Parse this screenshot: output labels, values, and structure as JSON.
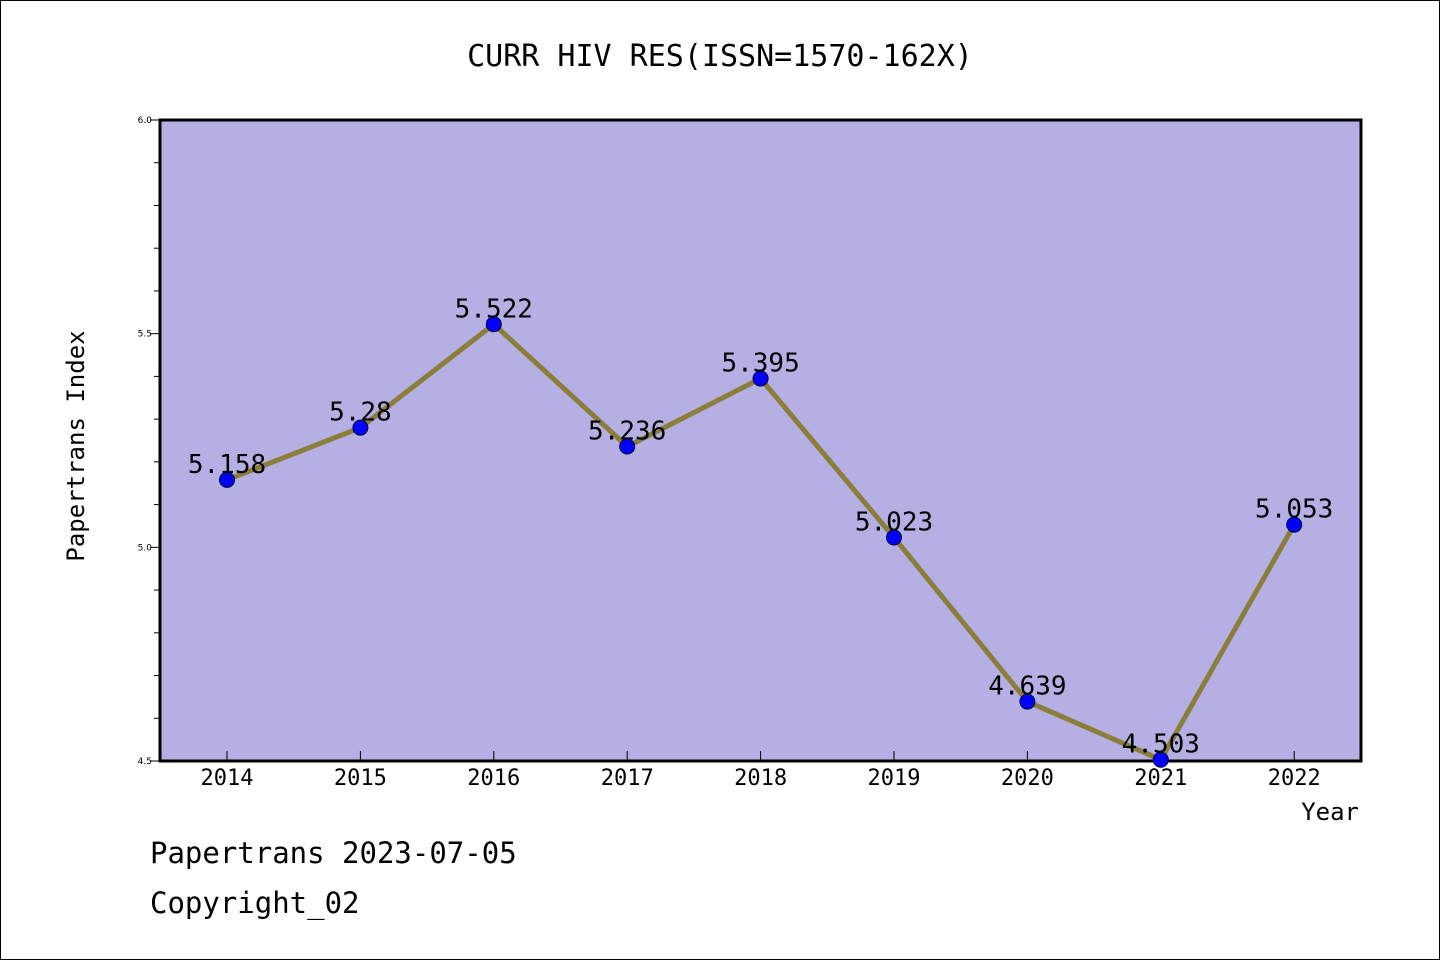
{
  "chart_data": {
    "type": "line",
    "title": "CURR HIV RES(ISSN=1570-162X)",
    "xlabel": "Year",
    "ylabel": "Papertrans Index",
    "categories": [
      "2014",
      "2015",
      "2016",
      "2017",
      "2018",
      "2019",
      "2020",
      "2021",
      "2022"
    ],
    "values": [
      5.158,
      5.28,
      5.522,
      5.236,
      5.395,
      5.023,
      4.639,
      4.503,
      5.053
    ],
    "data_labels": [
      "5.158",
      "5.28",
      "5.522",
      "5.236",
      "5.395",
      "5.023",
      "4.639",
      "4.503",
      "5.053"
    ],
    "ylim": [
      4.5,
      6.0
    ],
    "yticks": [
      "4.5",
      "5.0",
      "5.5",
      "6.0"
    ],
    "grid": false,
    "legend": "none",
    "colors": {
      "plot_background": "#b5b0e3",
      "line": "#8b7d3a",
      "marker": "#0000ff"
    }
  },
  "footer": {
    "line1": "Papertrans 2023-07-05",
    "line2": "Copyright_02"
  }
}
